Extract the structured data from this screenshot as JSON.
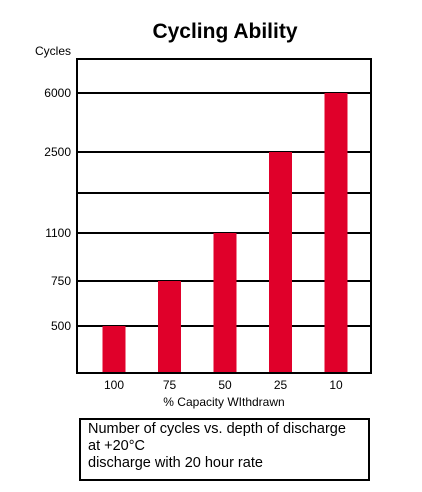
{
  "chart_data": {
    "type": "bar",
    "title": "Cycling Ability",
    "ylabel": "Cycles",
    "xlabel": "% Capacity WIthdrawn",
    "categories": [
      "100",
      "75",
      "50",
      "25",
      "10"
    ],
    "values": [
      500,
      750,
      1100,
      2500,
      6000
    ],
    "y_ticks": [
      "500",
      "750",
      "1100",
      "2500",
      "6000"
    ],
    "y_scale": "categorical levels (non-linear): gridlines at 500, 750, 1100, an unlabeled line, 2500, 6000",
    "grid": true,
    "bar_color": "#e0002a",
    "caption": [
      "Number of cycles vs. depth of discharge",
      "at +20°C",
      "discharge with 20 hour rate"
    ]
  }
}
